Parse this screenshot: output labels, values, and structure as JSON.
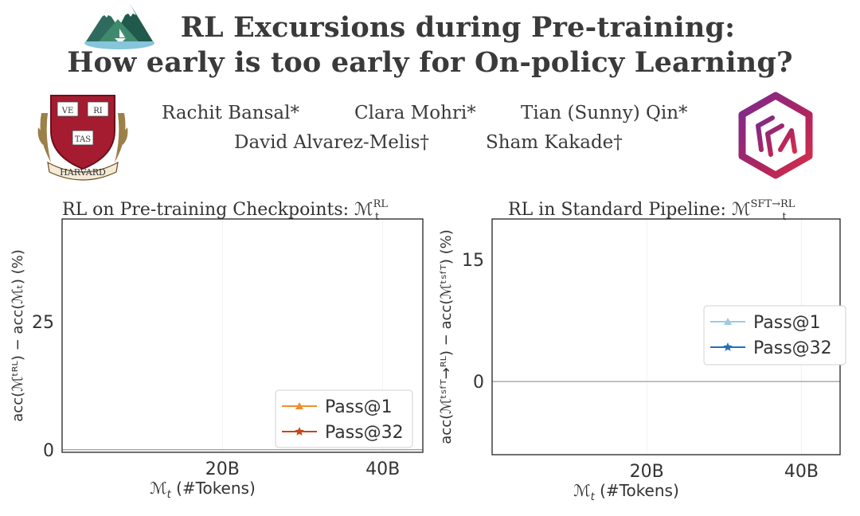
{
  "header": {
    "title_line1": "RL Excursions during Pre-training:",
    "title_line2": "How early is too early for On-policy Learning?",
    "authors": [
      "Rachit Bansal*",
      "Clara Mohri*",
      "Tian (Sunny) Qin*",
      "David Alvarez-Melis†",
      "Sham Kakade†"
    ],
    "harvard_shield": {
      "veritas": [
        "VE",
        "RI",
        "TAS"
      ],
      "banner": "HARVARD"
    }
  },
  "chart_data": [
    {
      "type": "line",
      "title": "RL on Pre-training Checkpoints: ℳ",
      "title_sup": "RL",
      "title_sub": "t",
      "xlabel": "ℳ",
      "xlabel_sub": "t",
      "xlabel_rest": " (#Tokens)",
      "ylabel": "acc(ℳᵗᴿᴸ) − acc(ℳₜ) (%)",
      "x_ticks": [
        "20B",
        "40B"
      ],
      "x_tick_values": [
        20,
        40
      ],
      "x_range": [
        0,
        45
      ],
      "y_ticks": [
        "0",
        "25"
      ],
      "y_tick_values": [
        0,
        25
      ],
      "y_range": [
        -0.5,
        45
      ],
      "zero_line": true,
      "legend_position": "lower-right",
      "colors": {
        "Pass@1": "#f28e2b",
        "Pass@32": "#c4471a"
      },
      "series": [
        {
          "name": "Pass@1",
          "marker": "triangle",
          "x": [],
          "y": []
        },
        {
          "name": "Pass@32",
          "marker": "star",
          "x": [],
          "y": []
        }
      ]
    },
    {
      "type": "line",
      "title": "RL in Standard Pipeline: ℳ",
      "title_sup": "SFT→RL",
      "title_sub": "t",
      "xlabel": "ℳ",
      "xlabel_sub": "t",
      "xlabel_rest": " (#Tokens)",
      "ylabel": "acc(ℳᵗˢᶠᵀ→ᴿᴸ) − acc(ℳᵗˢᶠᵀ) (%)",
      "x_ticks": [
        "20B",
        "40B"
      ],
      "x_tick_values": [
        20,
        40
      ],
      "x_range": [
        0,
        45
      ],
      "y_ticks": [
        "0",
        "15"
      ],
      "y_tick_values": [
        0,
        15
      ],
      "y_range": [
        -9,
        20
      ],
      "zero_line": true,
      "legend_position": "upper-right",
      "colors": {
        "Pass@1": "#9ecae1",
        "Pass@32": "#2171b5"
      },
      "series": [
        {
          "name": "Pass@1",
          "marker": "triangle",
          "x": [],
          "y": []
        },
        {
          "name": "Pass@32",
          "marker": "star",
          "x": [],
          "y": []
        }
      ]
    }
  ]
}
